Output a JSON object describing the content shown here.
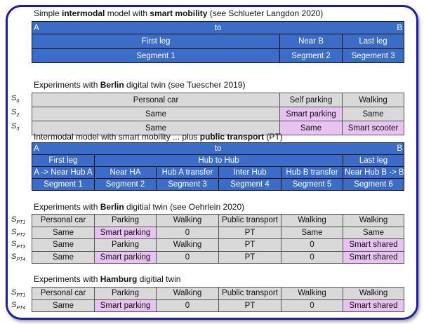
{
  "section1": {
    "title_pre": "Simple ",
    "title_b1": "intermodal",
    "title_mid": " model with ",
    "title_b2": "smart mobility",
    "title_post": " (see Schlueter Langdon 2020)",
    "from": "A",
    "to": "to",
    "dest": "B",
    "legs": [
      "First leg",
      "Near B",
      "Last leg"
    ],
    "segments": [
      "Segment 1",
      "Segment 2",
      "Segement 3"
    ]
  },
  "section2": {
    "title_pre": "Experiments with ",
    "title_b": "Berlin",
    "title_post": " digital twin (see Tuescher 2019)",
    "rows": [
      {
        "label": "S",
        "sub": "0",
        "cells": [
          "Personal car",
          "Self parking",
          "Walking"
        ]
      },
      {
        "label": "S",
        "sub": "2",
        "cells": [
          "Same",
          "Smart parking",
          "Same"
        ]
      },
      {
        "label": "S",
        "sub": "3",
        "cells": [
          "Same",
          "Same",
          "Smart scooter"
        ]
      }
    ]
  },
  "section3": {
    "title_pre": "Intermodal model with smart mobility ... plus ",
    "title_b": "public transport",
    "title_post": " (PT)",
    "from": "A",
    "to": "to",
    "dest": "B",
    "legs": [
      "First leg",
      "Hub to Hub",
      "Last leg"
    ],
    "parts": [
      "A -> Near Hub A",
      "Near HA",
      "Hub A transfer",
      "Inter Hub",
      "Hub B transfer",
      "Near Hub B -> B"
    ],
    "segments": [
      "Segment 1",
      "Segment 2",
      "Segment 3",
      "Segment 4",
      "Segment 5",
      "Segment 6"
    ]
  },
  "section4": {
    "title_pre": "Experiments with ",
    "title_b": "Berlin",
    "title_post": " digitial twin (see Oehrlein 2020)",
    "rows": [
      {
        "label": "S",
        "sub": "PT1",
        "cells": [
          "Personal car",
          "Parking",
          "Walking",
          "Public transport",
          "Walking",
          "Walking"
        ]
      },
      {
        "label": "S",
        "sub": "PT2",
        "cells": [
          "Same",
          "Smart parking",
          "0",
          "PT",
          "Same",
          "Same"
        ]
      },
      {
        "label": "S",
        "sub": "PT3",
        "cells": [
          "Same",
          "Parking",
          "Walking",
          "PT",
          "0",
          "Smart shared"
        ]
      },
      {
        "label": "S",
        "sub": "PT4",
        "cells": [
          "Same",
          "Smart parking",
          "0",
          "PT",
          "0",
          "Smart shared"
        ]
      }
    ]
  },
  "section5": {
    "title_pre": "Experiments with ",
    "title_b": "Hamburg",
    "title_post": " digitial twin",
    "rows": [
      {
        "label": "S",
        "sub": "PT1",
        "cells": [
          "Personal car",
          "Parking",
          "Walking",
          "Public transport",
          "Walking",
          "Walking"
        ]
      },
      {
        "label": "S",
        "sub": "PT4",
        "cells": [
          "Same",
          "Smart parking",
          "0",
          "PT",
          "0",
          "Smart shared"
        ]
      }
    ]
  },
  "colors": {
    "header_blue": "#3a6cc8",
    "cell_gray": "#d9d9d9",
    "highlight_pink": "#e8c3f2",
    "frame": "#1c1ca8"
  }
}
